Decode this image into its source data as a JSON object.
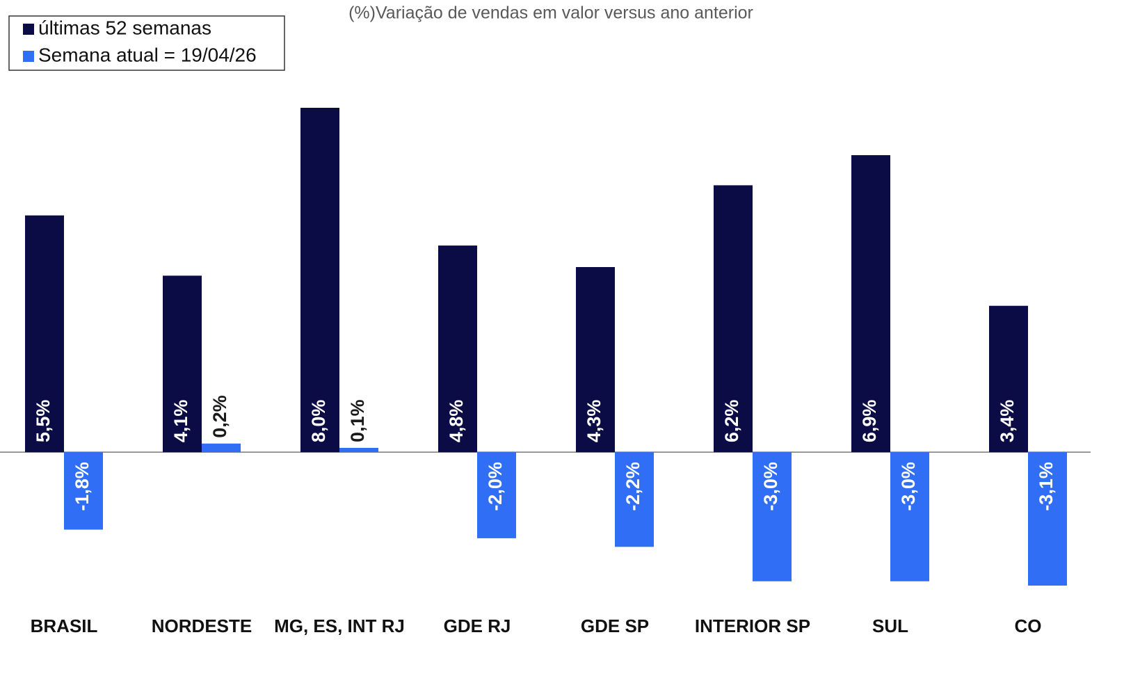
{
  "chart_data": {
    "type": "bar",
    "title": "(%)Variação de vendas em valor versus ano anterior",
    "categories": [
      "BRASIL",
      "NORDESTE",
      "MG, ES, INT RJ",
      "GDE RJ",
      "GDE SP",
      "INTERIOR SP",
      "SUL",
      "CO"
    ],
    "series": [
      {
        "name": "últimas 52 semanas",
        "color": "#0b0c45",
        "values": [
          5.5,
          4.1,
          8.0,
          4.8,
          4.3,
          6.2,
          6.9,
          3.4
        ],
        "value_labels": [
          "5,5%",
          "4,1%",
          "8,0%",
          "4,8%",
          "4,3%",
          "6,2%",
          "6,9%",
          "3,4%"
        ]
      },
      {
        "name": "Semana atual = 19/04/26",
        "color": "#2f6ef5",
        "values": [
          -1.8,
          0.2,
          0.1,
          -2.0,
          -2.2,
          -3.0,
          -3.0,
          -3.1
        ],
        "value_labels": [
          "-1,8%",
          "0,2%",
          "0,1%",
          "-2,0%",
          "-2,2%",
          "-3,0%",
          "-3,0%",
          "-3,1%"
        ]
      }
    ],
    "legend": "upper left"
  }
}
